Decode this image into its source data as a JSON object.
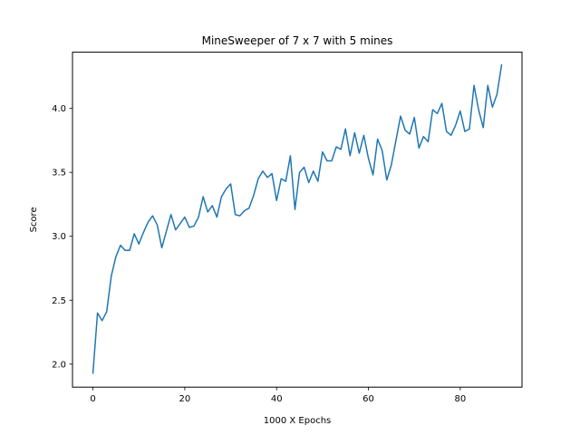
{
  "chart_data": {
    "type": "line",
    "title": "MineSweeper of 7 x 7 with 5 mines",
    "xlabel": "1000 X Epochs",
    "ylabel": "Score",
    "xlim": [
      -4.45,
      93.45
    ],
    "ylim": [
      1.82,
      4.44
    ],
    "xticks": [
      0,
      20,
      40,
      60,
      80
    ],
    "yticks": [
      2.0,
      2.5,
      3.0,
      3.5,
      4.0
    ],
    "xtick_labels": [
      "0",
      "20",
      "40",
      "60",
      "80"
    ],
    "ytick_labels": [
      "2.0",
      "2.5",
      "3.0",
      "3.5",
      "4.0"
    ],
    "grid": false,
    "series": [
      {
        "name": "Score",
        "color": "#1f77b4",
        "x": [
          0,
          1,
          2,
          3,
          4,
          5,
          6,
          7,
          8,
          9,
          10,
          11,
          12,
          13,
          14,
          15,
          16,
          17,
          18,
          19,
          20,
          21,
          22,
          23,
          24,
          25,
          26,
          27,
          28,
          29,
          30,
          31,
          32,
          33,
          34,
          35,
          36,
          37,
          38,
          39,
          40,
          41,
          42,
          43,
          44,
          45,
          46,
          47,
          48,
          49,
          50,
          51,
          52,
          53,
          54,
          55,
          56,
          57,
          58,
          59,
          60,
          61,
          62,
          63,
          64,
          65,
          66,
          67,
          68,
          69,
          70,
          71,
          72,
          73,
          74,
          75,
          76,
          77,
          78,
          79,
          80,
          81,
          82,
          83,
          84,
          85,
          86,
          87,
          88,
          89
        ],
        "values": [
          1.93,
          2.4,
          2.34,
          2.41,
          2.69,
          2.84,
          2.93,
          2.89,
          2.89,
          3.02,
          2.94,
          3.03,
          3.11,
          3.16,
          3.09,
          2.91,
          3.04,
          3.17,
          3.05,
          3.1,
          3.15,
          3.07,
          3.08,
          3.15,
          3.31,
          3.19,
          3.24,
          3.15,
          3.31,
          3.37,
          3.41,
          3.17,
          3.16,
          3.2,
          3.22,
          3.32,
          3.45,
          3.51,
          3.46,
          3.49,
          3.28,
          3.45,
          3.43,
          3.63,
          3.21,
          3.5,
          3.54,
          3.42,
          3.51,
          3.43,
          3.66,
          3.59,
          3.59,
          3.7,
          3.68,
          3.84,
          3.63,
          3.81,
          3.65,
          3.79,
          3.61,
          3.48,
          3.76,
          3.67,
          3.44,
          3.56,
          3.75,
          3.94,
          3.83,
          3.8,
          3.93,
          3.69,
          3.78,
          3.74,
          3.99,
          3.96,
          4.04,
          3.82,
          3.79,
          3.87,
          3.98,
          3.82,
          3.84,
          4.18,
          3.99,
          3.85,
          4.18,
          4.01,
          4.11,
          4.34
        ]
      }
    ]
  }
}
